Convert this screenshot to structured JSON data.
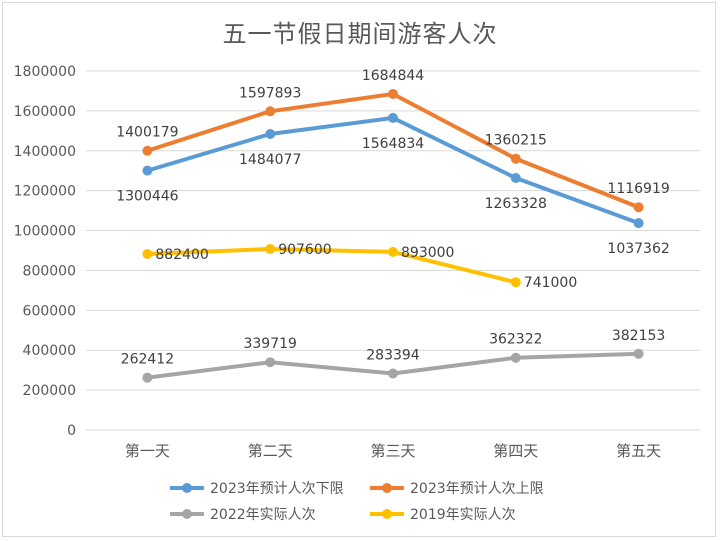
{
  "chart_data": {
    "type": "line",
    "title": "五一节假日期间游客人次",
    "categories": [
      "第一天",
      "第二天",
      "第三天",
      "第四天",
      "第五天"
    ],
    "ylim": [
      0,
      1800000
    ],
    "yticks": [
      0,
      200000,
      400000,
      600000,
      800000,
      1000000,
      1200000,
      1400000,
      1600000,
      1800000
    ],
    "grid": true,
    "legend_position": "bottom",
    "series": [
      {
        "name": "2023年预计人次下限",
        "color": "#5b9bd5",
        "values": [
          1300446,
          1484077,
          1564834,
          1263328,
          1037362
        ],
        "label_pos": [
          "below",
          "below",
          "below",
          "below",
          "below"
        ]
      },
      {
        "name": "2023年预计人次上限",
        "color": "#ed7d31",
        "values": [
          1400179,
          1597893,
          1684844,
          1360215,
          1116919
        ],
        "label_pos": [
          "above",
          "above",
          "above",
          "above",
          "above"
        ]
      },
      {
        "name": "2022年实际人次",
        "color": "#a5a5a5",
        "values": [
          262412,
          339719,
          283394,
          362322,
          382153
        ],
        "label_pos": [
          "above",
          "above",
          "above",
          "above",
          "above"
        ]
      },
      {
        "name": "2019年实际人次",
        "color": "#ffc000",
        "values": [
          882400,
          907600,
          893000,
          741000,
          null
        ],
        "label_pos": [
          "right",
          "right",
          "right",
          "right",
          "right"
        ]
      }
    ]
  }
}
